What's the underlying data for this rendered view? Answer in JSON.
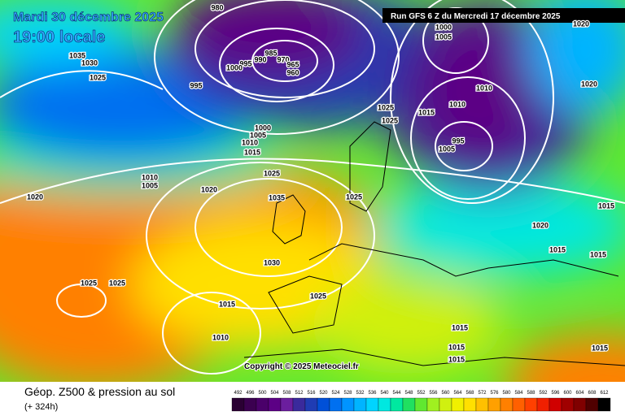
{
  "header": {
    "date": "Mardi 30 décembre 2025",
    "time": "19:00 locale",
    "run": "Run GFS 6 Z du Mercredi 17 décembre 2025"
  },
  "copyright": "Copyright © 2025 Meteociel.fr",
  "footer": {
    "title": "Géop. Z500 & pression au sol",
    "lead": "(+ 324h)"
  },
  "isobar_labels": [
    "1035",
    "1030",
    "1025",
    "980",
    "995",
    "1000",
    "990",
    "985",
    "970",
    "965",
    "960",
    "995",
    "1005",
    "1000",
    "1010",
    "1010",
    "1015",
    "1025",
    "1025",
    "995",
    "1005",
    "1000",
    "1005",
    "1010",
    "1015",
    "1025",
    "1035",
    "1010",
    "1005",
    "1020",
    "1020",
    "1025",
    "1020",
    "1015",
    "1020",
    "1030",
    "1015",
    "1015",
    "1025",
    "1025",
    "1025",
    "1015",
    "1010",
    "1015",
    "1015",
    "1015",
    "1015",
    "1020"
  ],
  "scale": {
    "values": [
      492,
      496,
      500,
      504,
      508,
      512,
      516,
      520,
      524,
      528,
      532,
      536,
      540,
      544,
      548,
      552,
      556,
      560,
      564,
      568,
      572,
      576,
      580,
      584,
      588,
      592,
      596,
      600,
      604,
      608,
      612
    ],
    "colors": [
      "#2a0033",
      "#3b0050",
      "#4a006a",
      "#5c0085",
      "#6b1e9e",
      "#3a2a9c",
      "#1f3cb4",
      "#0050d8",
      "#0070f0",
      "#0094ff",
      "#00b4ff",
      "#00d4ff",
      "#00e8e0",
      "#00e8a0",
      "#20e060",
      "#60e830",
      "#a0f020",
      "#d0f010",
      "#f0f000",
      "#ffe000",
      "#ffc000",
      "#ffa000",
      "#ff8000",
      "#ff6000",
      "#ff4000",
      "#f02000",
      "#d00000",
      "#a00000",
      "#800000",
      "#500000",
      "#000000"
    ]
  }
}
